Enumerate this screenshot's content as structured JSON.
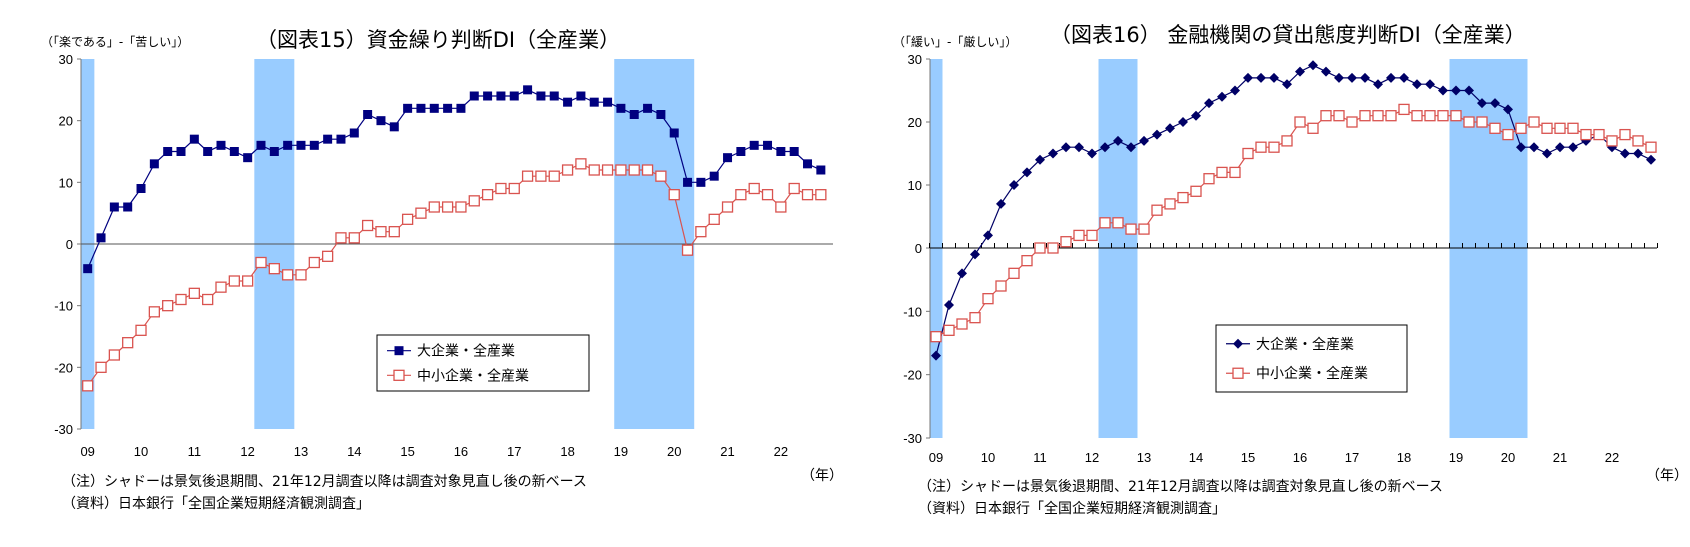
{
  "chart_data": [
    {
      "type": "line",
      "title": "（図表15）資金繰り判断DI（全産業）",
      "ylabel": "（「楽である」-「苦しい」）",
      "xlabel": "（年）",
      "x_start": "2009Q1",
      "x_frequency": "quarterly",
      "xticks": [
        "09",
        "10",
        "11",
        "12",
        "13",
        "14",
        "15",
        "16",
        "17",
        "18",
        "19",
        "20",
        "21",
        "22"
      ],
      "ylim": [
        -30,
        30
      ],
      "yticks": [
        30,
        20,
        10,
        0,
        -10,
        -20,
        -30
      ],
      "grid": false,
      "legend_position": "center-right-bottom",
      "shading": [
        [
          "2009Q1",
          "2009Q1"
        ],
        [
          "2012Q2",
          "2012Q4"
        ],
        [
          "2019Q1",
          "2020Q2"
        ]
      ],
      "series": [
        {
          "name": "大企業・全産業",
          "marker": "filled-square",
          "color": "#000080",
          "values": [
            -4,
            1,
            6,
            6,
            9,
            13,
            15,
            15,
            17,
            15,
            16,
            15,
            14,
            16,
            15,
            16,
            16,
            16,
            17,
            17,
            18,
            21,
            20,
            19,
            22,
            22,
            22,
            22,
            22,
            24,
            24,
            24,
            24,
            25,
            24,
            24,
            23,
            24,
            23,
            23,
            22,
            21,
            22,
            21,
            18,
            10,
            10,
            11,
            14,
            15,
            16,
            16,
            15,
            15,
            13,
            12
          ]
        },
        {
          "name": "中小企業・全産業",
          "marker": "open-square",
          "color": "#d9534f",
          "values": [
            -23,
            -20,
            -18,
            -16,
            -14,
            -11,
            -10,
            -9,
            -8,
            -9,
            -7,
            -6,
            -6,
            -3,
            -4,
            -5,
            -5,
            -3,
            -2,
            1,
            1,
            3,
            2,
            2,
            4,
            5,
            6,
            6,
            6,
            7,
            8,
            9,
            9,
            11,
            11,
            11,
            12,
            13,
            12,
            12,
            12,
            12,
            12,
            11,
            8,
            -1,
            2,
            4,
            6,
            8,
            9,
            8,
            6,
            9,
            8,
            8
          ]
        }
      ],
      "notes": [
        "（注）シャドーは景気後退期間、21年12月調査以降は調査対象見直し後の新ベース",
        "（資料）日本銀行「全国企業短期経済観測調査」"
      ]
    },
    {
      "type": "line",
      "title": "（図表16） 金融機関の貸出態度判断DI（全産業）",
      "ylabel": "（「緩い」-「厳しい」）",
      "xlabel": "（年）",
      "x_start": "2009Q1",
      "x_frequency": "quarterly",
      "xticks": [
        "09",
        "10",
        "11",
        "12",
        "13",
        "14",
        "15",
        "16",
        "17",
        "18",
        "19",
        "20",
        "21",
        "22"
      ],
      "ylim": [
        -30,
        30
      ],
      "yticks": [
        30,
        20,
        10,
        0,
        -10,
        -20,
        -30
      ],
      "grid": false,
      "legend_position": "center-right-bottom",
      "shading": [
        [
          "2009Q1",
          "2009Q1"
        ],
        [
          "2012Q2",
          "2012Q4"
        ],
        [
          "2019Q1",
          "2020Q2"
        ]
      ],
      "series": [
        {
          "name": "大企業・全産業",
          "marker": "filled-diamond",
          "color": "#000066",
          "values": [
            -17,
            -9,
            -4,
            -1,
            2,
            7,
            10,
            12,
            14,
            15,
            16,
            16,
            15,
            16,
            17,
            16,
            17,
            18,
            19,
            20,
            21,
            23,
            24,
            25,
            27,
            27,
            27,
            26,
            28,
            29,
            28,
            27,
            27,
            27,
            26,
            27,
            27,
            26,
            26,
            25,
            25,
            25,
            23,
            23,
            22,
            16,
            16,
            15,
            16,
            16,
            17,
            18,
            16,
            15,
            15,
            14
          ]
        },
        {
          "name": "中小企業・全産業",
          "marker": "open-square",
          "color": "#d9534f",
          "values": [
            -14,
            -13,
            -12,
            -11,
            -8,
            -6,
            -4,
            -2,
            0,
            0,
            1,
            2,
            2,
            4,
            4,
            3,
            3,
            6,
            7,
            8,
            9,
            11,
            12,
            12,
            15,
            16,
            16,
            17,
            20,
            19,
            21,
            21,
            20,
            21,
            21,
            21,
            22,
            21,
            21,
            21,
            21,
            20,
            20,
            19,
            18,
            19,
            20,
            19,
            19,
            19,
            18,
            18,
            17,
            18,
            17,
            16
          ]
        }
      ],
      "notes": [
        "（注）シャドーは景気後退期間、21年12月調査以降は調査対象見直し後の新ベース",
        "（資料）日本銀行「全国企業短期経済観測調査」"
      ]
    }
  ],
  "colors": {
    "shading": "#99ccff",
    "zero_line": "#555555"
  }
}
